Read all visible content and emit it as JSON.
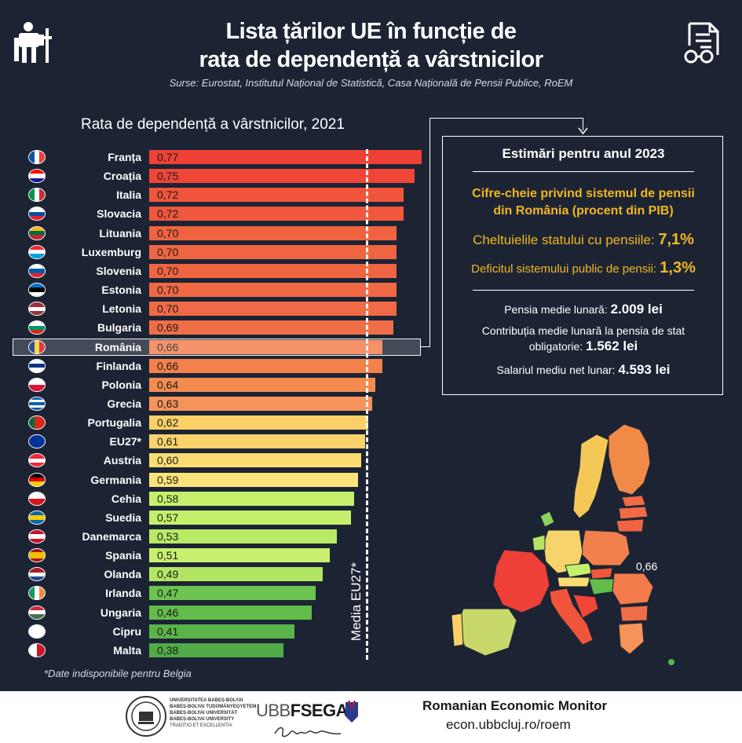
{
  "header": {
    "title_line1": "Lista țărilor UE în funcție de",
    "title_line2": "rata de dependență a vârstnicilor",
    "sources": "Surse:  Eurostat, Institutul Național de Statistică, Casa Națională de Pensii Publice, RoEM",
    "left_icon": "pensioner-icon",
    "right_icon": "document-glasses-icon"
  },
  "chart_data": {
    "type": "bar",
    "orientation": "horizontal",
    "title": "Rata de dependență a vârstnicilor, 2021",
    "categories": [
      "Franța",
      "Croația",
      "Italia",
      "Slovacia",
      "Lituania",
      "Luxemburg",
      "Slovenia",
      "Estonia",
      "Letonia",
      "Bulgaria",
      "România",
      "Finlanda",
      "Polonia",
      "Grecia",
      "Portugalia",
      "EU27*",
      "Austria",
      "Germania",
      "Cehia",
      "Suedia",
      "Danemarca",
      "Spania",
      "Olanda",
      "Irlanda",
      "Ungaria",
      "Cipru",
      "Malta"
    ],
    "values": [
      0.77,
      0.75,
      0.72,
      0.72,
      0.7,
      0.7,
      0.7,
      0.7,
      0.7,
      0.69,
      0.66,
      0.66,
      0.64,
      0.63,
      0.62,
      0.61,
      0.6,
      0.59,
      0.58,
      0.57,
      0.53,
      0.51,
      0.49,
      0.47,
      0.46,
      0.41,
      0.38
    ],
    "value_labels": [
      "0,77",
      "0,75",
      "0,72",
      "0,72",
      "0,70",
      "0,70",
      "0,70",
      "0,70",
      "0,70",
      "0,69",
      "0,66",
      "0,66",
      "0,64",
      "0,63",
      "0,62",
      "0,61",
      "0,60",
      "0,59",
      "0,58",
      "0,57",
      "0,53",
      "0,51",
      "0,49",
      "0,47",
      "0,46",
      "0,41",
      "0,38"
    ],
    "colors": [
      "#ee4036",
      "#ef4638",
      "#f0553c",
      "#f0573d",
      "#f06240",
      "#f06541",
      "#f06541",
      "#f06844",
      "#f06a45",
      "#f06e47",
      "#f37a4a",
      "#f3814c",
      "#f48c50",
      "#f5935a",
      "#fbd167",
      "#fbd26b",
      "#fbdd72",
      "#fbe27a",
      "#c6f06c",
      "#c4ef6b",
      "#b7ea66",
      "#c8f06e",
      "#b3e563",
      "#6cc34f",
      "#62bd4b",
      "#5ab449",
      "#51ab46"
    ],
    "highlight": "România",
    "reference_line": {
      "value": 0.61,
      "label": "Media EU27*"
    },
    "xlim": [
      0,
      0.8
    ],
    "footnote": "*Date indisponibile pentru Belgia"
  },
  "flags": [
    {
      "country": "Franța",
      "dir": "v",
      "colors": [
        "#0055a4",
        "#ffffff",
        "#ef4135"
      ]
    },
    {
      "country": "Croația",
      "dir": "h",
      "colors": [
        "#ff0000",
        "#ffffff",
        "#171796"
      ]
    },
    {
      "country": "Italia",
      "dir": "v",
      "colors": [
        "#009246",
        "#ffffff",
        "#ce2b37"
      ]
    },
    {
      "country": "Slovacia",
      "dir": "h",
      "colors": [
        "#ffffff",
        "#0b4ea2",
        "#ee1c25"
      ]
    },
    {
      "country": "Lituania",
      "dir": "h",
      "colors": [
        "#fdb913",
        "#006a44",
        "#c1272d"
      ]
    },
    {
      "country": "Luxemburg",
      "dir": "h",
      "colors": [
        "#ed2939",
        "#ffffff",
        "#00a1de"
      ]
    },
    {
      "country": "Slovenia",
      "dir": "h",
      "colors": [
        "#ffffff",
        "#005da4",
        "#ed1c24"
      ]
    },
    {
      "country": "Estonia",
      "dir": "h",
      "colors": [
        "#0072ce",
        "#000000",
        "#ffffff"
      ]
    },
    {
      "country": "Letonia",
      "dir": "h",
      "colors": [
        "#9e3039",
        "#ffffff",
        "#9e3039"
      ]
    },
    {
      "country": "Bulgaria",
      "dir": "h",
      "colors": [
        "#ffffff",
        "#00966e",
        "#d62612"
      ]
    },
    {
      "country": "România",
      "dir": "v",
      "colors": [
        "#002b7f",
        "#fcd116",
        "#ce1126"
      ]
    },
    {
      "country": "Finlanda",
      "dir": "h",
      "colors": [
        "#ffffff",
        "#003580",
        "#ffffff"
      ]
    },
    {
      "country": "Polonia",
      "dir": "h",
      "colors": [
        "#ffffff",
        "#dc143c"
      ]
    },
    {
      "country": "Grecia",
      "dir": "h",
      "colors": [
        "#0d5eaf",
        "#ffffff",
        "#0d5eaf",
        "#ffffff",
        "#0d5eaf"
      ]
    },
    {
      "country": "Portugalia",
      "dir": "v",
      "colors": [
        "#046a38",
        "#da291c",
        "#da291c"
      ]
    },
    {
      "country": "EU27*",
      "dir": "h",
      "colors": [
        "#003399"
      ]
    },
    {
      "country": "Austria",
      "dir": "h",
      "colors": [
        "#ed2939",
        "#ffffff",
        "#ed2939"
      ]
    },
    {
      "country": "Germania",
      "dir": "h",
      "colors": [
        "#000000",
        "#dd0000",
        "#ffce00"
      ]
    },
    {
      "country": "Cehia",
      "dir": "h",
      "colors": [
        "#ffffff",
        "#d7141a"
      ]
    },
    {
      "country": "Suedia",
      "dir": "h",
      "colors": [
        "#006aa7",
        "#fecc00",
        "#006aa7"
      ]
    },
    {
      "country": "Danemarca",
      "dir": "h",
      "colors": [
        "#c8102e",
        "#ffffff",
        "#c8102e"
      ]
    },
    {
      "country": "Spania",
      "dir": "h",
      "colors": [
        "#aa151b",
        "#f1bf00",
        "#f1bf00",
        "#aa151b"
      ]
    },
    {
      "country": "Olanda",
      "dir": "h",
      "colors": [
        "#ae1c28",
        "#ffffff",
        "#21468b"
      ]
    },
    {
      "country": "Irlanda",
      "dir": "v",
      "colors": [
        "#169b62",
        "#ffffff",
        "#ff883e"
      ]
    },
    {
      "country": "Ungaria",
      "dir": "h",
      "colors": [
        "#ce2939",
        "#ffffff",
        "#477050"
      ]
    },
    {
      "country": "Cipru",
      "dir": "h",
      "colors": [
        "#ffffff"
      ]
    },
    {
      "country": "Malta",
      "dir": "v",
      "colors": [
        "#ffffff",
        "#cf142b"
      ]
    }
  ],
  "panel": {
    "title": "Estimări pentru anul 2023",
    "subtitle_line1": "Cifre-cheie privind sistemul de pensii",
    "subtitle_line2": "din România (procent din PIB)",
    "spending_label": "Cheltuielile statului cu pensiile: ",
    "spending_value": "7,1%",
    "deficit_label": "Deficitul  sistemului public de pensii: ",
    "deficit_value": "1,3%",
    "pension_label": "Pensia medie lunară: ",
    "pension_value": "2.009 lei",
    "contrib_line1": "Contribuția medie lunară la pensia de stat",
    "contrib_label": "obligatorie: ",
    "contrib_value": "1.562 lei",
    "salary_label": "Salariul mediu net lunar: ",
    "salary_value": "4.593 lei"
  },
  "map": {
    "romania_label": "0,66"
  },
  "footer": {
    "univ_lines": [
      "UNIVERSITATEA BABEȘ-BOLYAI",
      "BABEȘ-BOLYAI TUDOMÁNYEGYETEM",
      "BABEȘ-BOLYAI UNIVERSITÄT",
      "BABEȘ-BOLYAI UNIVERSITY",
      "TRADITIO ET EXCELLENTIA"
    ],
    "ubb": "UBB",
    "fsega": "FSEGA",
    "title": "Romanian Economic Monitor",
    "url": "econ.ubbcluj.ro/roem"
  }
}
